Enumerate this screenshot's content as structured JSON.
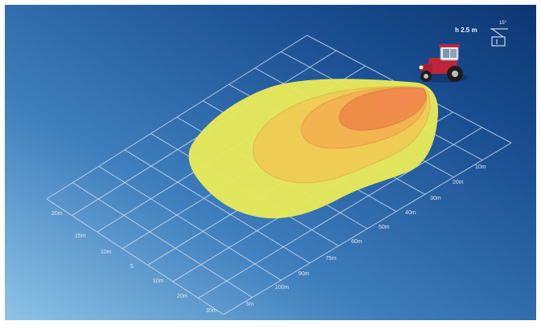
{
  "mount": {
    "height_text": "h 2.5 m",
    "angle_text": "15°"
  },
  "axis_left_labels": [
    "20m",
    "15m",
    "10m",
    "5",
    "10m",
    "20m",
    "30m"
  ],
  "axis_right_labels": [
    "5m",
    "100m",
    "90m",
    "75m",
    "60m",
    "50m",
    "40m",
    "30m",
    "20m",
    "10m"
  ],
  "colors": {
    "bg_light": "#7db6dc",
    "bg_dark": "#0e3a78",
    "zone_outer": "#e9ea55",
    "zone_mid": "#f3c84f",
    "zone_inner": "#f1964b",
    "grid": "#d8e6f2",
    "tractor_body": "#c0243a"
  }
}
